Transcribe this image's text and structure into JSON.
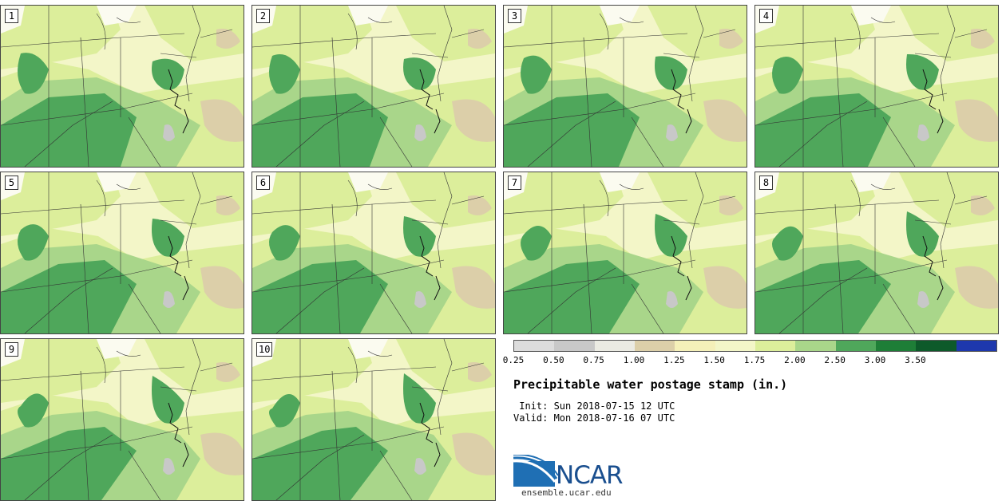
{
  "panels": [
    "1",
    "2",
    "3",
    "4",
    "5",
    "6",
    "7",
    "8",
    "9",
    "10"
  ],
  "legend": {
    "colors": [
      "#dcdcdc",
      "#c8c8c8",
      "#ebebe3",
      "#dccfa9",
      "#f5f0b9",
      "#f3f6c8",
      "#dcee9b",
      "#a9d68a",
      "#4fa75b",
      "#1e7e37",
      "#0d5a2a",
      "#1e38ad"
    ],
    "labels": [
      "0.25",
      "0.50",
      "0.75",
      "1.00",
      "1.25",
      "1.50",
      "1.75",
      "2.00",
      "2.50",
      "3.00",
      "3.50"
    ]
  },
  "title": "Precipitable water postage stamp (in.)",
  "init": " Init: Sun 2018-07-15 12 UTC",
  "valid": "Valid: Mon 2018-07-16 07 UTC",
  "logo": {
    "text": "NCAR",
    "url": "ensemble.ucar.edu"
  },
  "map_colors": {
    "background": "#f3f6c8",
    "light_green": "#dcee9b",
    "mid_green": "#a9d68a",
    "dark_green": "#4fa75b",
    "tan": "#dccfa9",
    "white": "#fbfbf0",
    "gray": "#c8c8c8"
  }
}
